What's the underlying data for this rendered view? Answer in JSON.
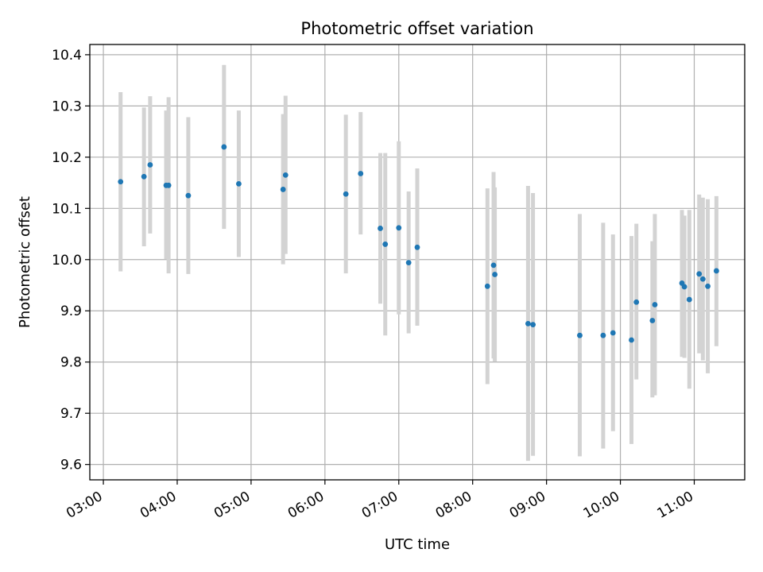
{
  "chart_data": {
    "type": "scatter",
    "title": "Photometric offset variation",
    "xlabel": "UTC time",
    "ylabel": "Photometric offset",
    "xlim": [
      "02:49",
      "11:41"
    ],
    "ylim": [
      9.57,
      10.42
    ],
    "x_ticks": [
      "03:00",
      "04:00",
      "05:00",
      "06:00",
      "07:00",
      "08:00",
      "09:00",
      "10:00",
      "11:00"
    ],
    "y_ticks": [
      "9.6",
      "9.7",
      "9.8",
      "9.9",
      "10.0",
      "10.1",
      "10.2",
      "10.3",
      "10.4"
    ],
    "grid": true,
    "colors": {
      "points": "#1f77b4",
      "error_bars": "#d3d3d3",
      "grid": "#b0b0b0"
    },
    "series": [
      {
        "points": [
          {
            "x": "03:14",
            "y": 10.152,
            "low": 9.977,
            "high": 10.327
          },
          {
            "x": "03:33",
            "y": 10.162,
            "low": 10.026,
            "high": 10.297
          },
          {
            "x": "03:38",
            "y": 10.185,
            "low": 10.051,
            "high": 10.319
          },
          {
            "x": "03:51",
            "y": 10.145,
            "low": 10.001,
            "high": 10.291
          },
          {
            "x": "03:53",
            "y": 10.145,
            "low": 9.973,
            "high": 10.317
          },
          {
            "x": "04:09",
            "y": 10.125,
            "low": 9.972,
            "high": 10.278
          },
          {
            "x": "04:38",
            "y": 10.22,
            "low": 10.06,
            "high": 10.38
          },
          {
            "x": "04:50",
            "y": 10.148,
            "low": 10.005,
            "high": 10.291
          },
          {
            "x": "05:26",
            "y": 10.137,
            "low": 9.991,
            "high": 10.284
          },
          {
            "x": "05:28",
            "y": 10.165,
            "low": 10.011,
            "high": 10.32
          },
          {
            "x": "06:17",
            "y": 10.128,
            "low": 9.973,
            "high": 10.283
          },
          {
            "x": "06:29",
            "y": 10.168,
            "low": 10.049,
            "high": 10.288
          },
          {
            "x": "06:45",
            "y": 10.061,
            "low": 9.914,
            "high": 10.208
          },
          {
            "x": "06:49",
            "y": 10.03,
            "low": 9.852,
            "high": 10.208
          },
          {
            "x": "07:00",
            "y": 10.062,
            "low": 9.893,
            "high": 10.231
          },
          {
            "x": "07:08",
            "y": 9.994,
            "low": 9.856,
            "high": 10.133
          },
          {
            "x": "07:15",
            "y": 10.024,
            "low": 9.871,
            "high": 10.178
          },
          {
            "x": "08:12",
            "y": 9.948,
            "low": 9.757,
            "high": 10.139
          },
          {
            "x": "08:17",
            "y": 9.989,
            "low": 9.807,
            "high": 10.171
          },
          {
            "x": "08:18",
            "y": 9.971,
            "low": 9.801,
            "high": 10.141
          },
          {
            "x": "08:45",
            "y": 9.875,
            "low": 9.607,
            "high": 10.144
          },
          {
            "x": "08:49",
            "y": 9.873,
            "low": 9.617,
            "high": 10.13
          },
          {
            "x": "09:27",
            "y": 9.852,
            "low": 9.616,
            "high": 10.089
          },
          {
            "x": "09:46",
            "y": 9.852,
            "low": 9.631,
            "high": 10.072
          },
          {
            "x": "09:54",
            "y": 9.857,
            "low": 9.665,
            "high": 10.049
          },
          {
            "x": "10:09",
            "y": 9.843,
            "low": 9.64,
            "high": 10.046
          },
          {
            "x": "10:13",
            "y": 9.917,
            "low": 9.766,
            "high": 10.07
          },
          {
            "x": "10:26",
            "y": 9.881,
            "low": 9.731,
            "high": 10.036
          },
          {
            "x": "10:28",
            "y": 9.912,
            "low": 9.735,
            "high": 10.089
          },
          {
            "x": "10:50",
            "y": 9.954,
            "low": 9.81,
            "high": 10.097
          },
          {
            "x": "10:52",
            "y": 9.947,
            "low": 9.808,
            "high": 10.086
          },
          {
            "x": "10:56",
            "y": 9.922,
            "low": 9.748,
            "high": 10.097
          },
          {
            "x": "11:04",
            "y": 9.972,
            "low": 9.817,
            "high": 10.127
          },
          {
            "x": "11:07",
            "y": 9.962,
            "low": 9.803,
            "high": 10.121
          },
          {
            "x": "11:11",
            "y": 9.948,
            "low": 9.778,
            "high": 10.118
          },
          {
            "x": "11:18",
            "y": 9.978,
            "low": 9.831,
            "high": 10.124
          }
        ]
      }
    ]
  }
}
